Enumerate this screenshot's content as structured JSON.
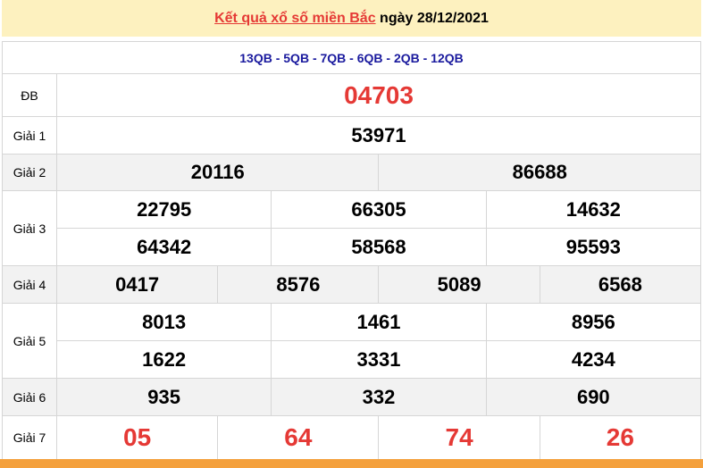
{
  "header": {
    "link": "Kết quả xổ số miền Bắc",
    "date": " ngày 28/12/2021"
  },
  "codes": "13QB - 5QB - 7QB - 6QB - 2QB - 12QB",
  "prizes": {
    "db": {
      "label": "ĐB",
      "numbers": [
        "04703"
      ]
    },
    "g1": {
      "label": "Giải 1",
      "numbers": [
        "53971"
      ]
    },
    "g2": {
      "label": "Giải 2",
      "numbers": [
        "20116",
        "86688"
      ]
    },
    "g3": {
      "label": "Giải 3",
      "numbers": [
        "22795",
        "66305",
        "14632",
        "64342",
        "58568",
        "95593"
      ]
    },
    "g4": {
      "label": "Giải 4",
      "numbers": [
        "0417",
        "8576",
        "5089",
        "6568"
      ]
    },
    "g5": {
      "label": "Giải 5",
      "numbers": [
        "8013",
        "1461",
        "8956",
        "1622",
        "3331",
        "4234"
      ]
    },
    "g6": {
      "label": "Giải 6",
      "numbers": [
        "935",
        "332",
        "690"
      ]
    },
    "g7": {
      "label": "Giải 7",
      "numbers": [
        "05",
        "64",
        "74",
        "26"
      ]
    }
  },
  "colors": {
    "accent": "#e53935",
    "header_bg": "#fdf1bf",
    "codes": "#1a1a9e",
    "footer": "#f4a03c"
  }
}
